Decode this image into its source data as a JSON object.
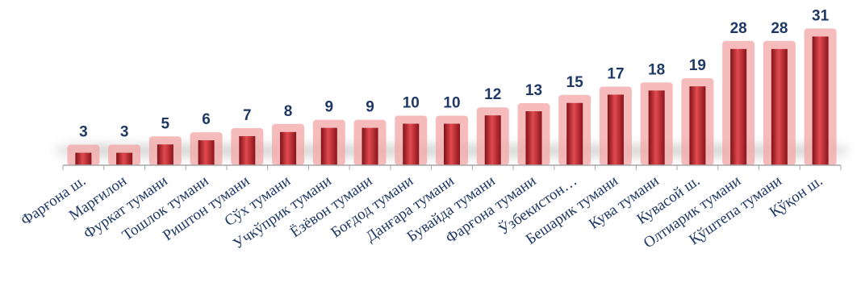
{
  "chart_data": {
    "type": "bar",
    "title": "",
    "xlabel": "",
    "ylabel": "",
    "ylim": [
      0,
      31
    ],
    "grid": false,
    "legend": "none",
    "categories": [
      "Фарғона ш.",
      "Марғилон",
      "Фуркат тумани",
      "Тошлок тумани",
      "Риштон тумани",
      "Сўх тумани",
      "Учкўприк тумани",
      "Ёзёвон тумани",
      "Боғдод тумани",
      "Данғара тумани",
      "Бувайда тумани",
      "Фарғона тумани",
      "Ўзбекистон…",
      "Бешарик тумани",
      "Кува тумани",
      "Кувасой ш.",
      "Олтиарик тумани",
      "Қўштепа тумани",
      "Қўқон ш."
    ],
    "values": [
      3,
      3,
      5,
      6,
      7,
      8,
      9,
      9,
      10,
      10,
      12,
      13,
      15,
      17,
      18,
      19,
      28,
      28,
      31
    ],
    "colors": {
      "bar": "#c0232a",
      "bar_light": "#e85a5e",
      "bar_dark": "#7e1217",
      "glow": "#f3a6a6",
      "value_label": "#1f3864",
      "category_label": "#1f3864",
      "axis": "#a6a6a6"
    }
  }
}
